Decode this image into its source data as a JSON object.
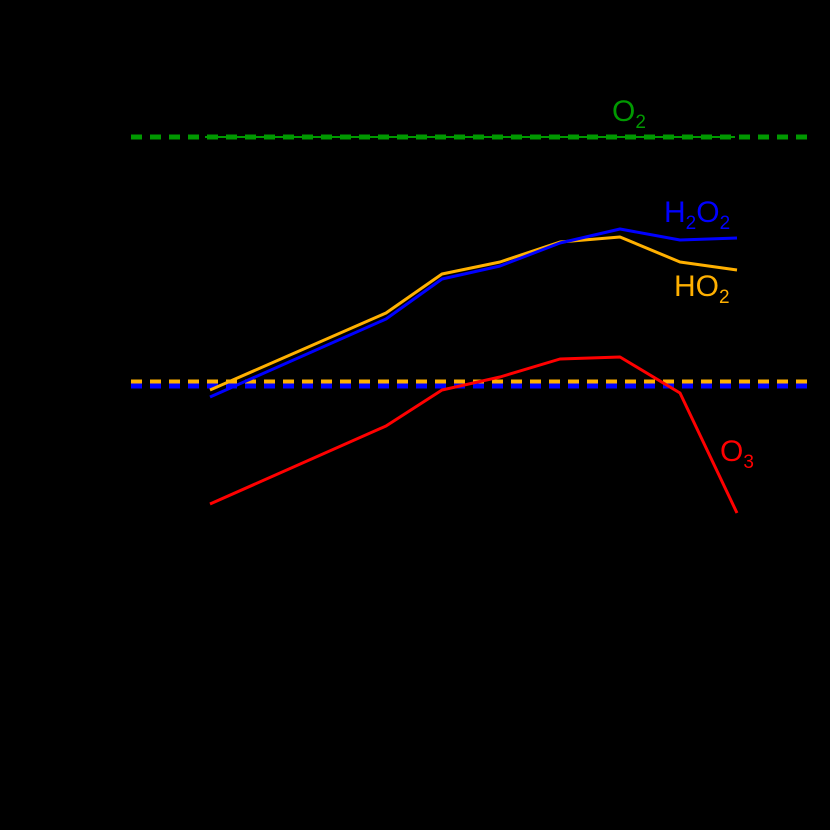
{
  "chart_data": {
    "type": "line",
    "title": "",
    "xlabel": "",
    "ylabel": "",
    "background": "#000000",
    "grid": false,
    "legend_position": "inline-labels",
    "note": "Axes, ticks and tick labels are rendered black on black and are not visible; values below are read in plot pixel coordinates (y measured upward from bottom of 830px canvas).",
    "x": [
      210,
      386,
      442,
      500,
      560,
      620,
      680,
      737
    ],
    "series": [
      {
        "name": "H2O2",
        "label_main": "H",
        "label_sub1": "2",
        "label_mid": "O",
        "label_sub2": "2",
        "color": "#0000FF",
        "style": "solid",
        "values": [
          433,
          511,
          551,
          564,
          587,
          601,
          590,
          592
        ]
      },
      {
        "name": "HO2",
        "label_main": "HO",
        "label_sub1": "2",
        "color": "#FFB000",
        "style": "solid",
        "values": [
          440,
          517,
          556,
          568,
          588,
          593,
          568,
          560
        ]
      },
      {
        "name": "O3",
        "label_main": "O",
        "label_sub1": "3",
        "color": "#FF0000",
        "style": "solid",
        "values": [
          326,
          404,
          440,
          453,
          471,
          473,
          437,
          317
        ]
      }
    ],
    "reference_lines": [
      {
        "name": "O2",
        "label_main": "O",
        "label_sub1": "2",
        "color": "#009900",
        "style": "dashed",
        "y": 693,
        "x_range": [
          131,
          815
        ]
      },
      {
        "name": "HO2-reference",
        "color": "#FFB000",
        "style": "dashed",
        "y": 448,
        "x_range": [
          131,
          815
        ]
      },
      {
        "name": "H2O2-reference",
        "color": "#0000FF",
        "style": "dashed",
        "y": 444,
        "x_range": [
          131,
          815
        ]
      }
    ],
    "annotations": [
      "O2",
      "H2O2",
      "HO2",
      "O3"
    ],
    "xlim": [
      131,
      815
    ],
    "ylim": [
      0,
      830
    ]
  },
  "labels": {
    "o2": {
      "main": "O",
      "sub": "2",
      "color": "#009900"
    },
    "h2o2": {
      "main1": "H",
      "sub1": "2",
      "main2": "O",
      "sub2": "2",
      "color": "#0000FF"
    },
    "ho2": {
      "main": "HO",
      "sub": "2",
      "color": "#FFB000"
    },
    "o3": {
      "main": "O",
      "sub": "3",
      "color": "#FF0000"
    }
  }
}
